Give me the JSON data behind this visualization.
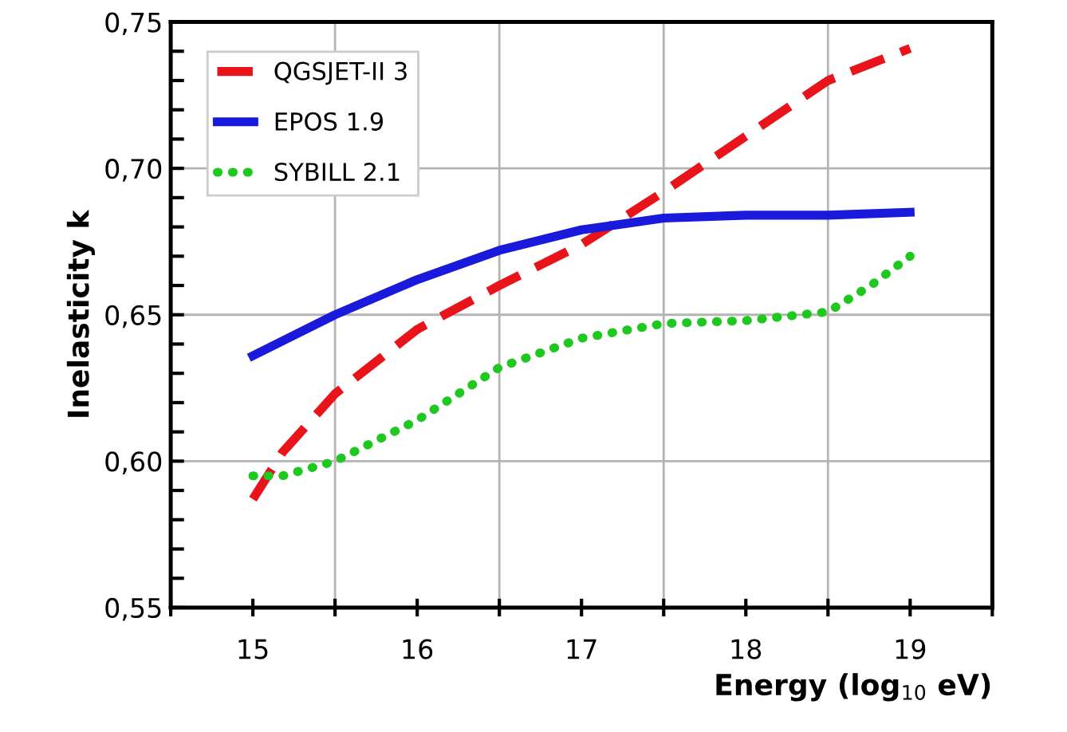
{
  "chart_data": {
    "type": "line",
    "xlabel": "Energy (log$_{10}$ eV)",
    "ylabel": "Inelasticity k",
    "xlim": [
      14.5,
      19.5
    ],
    "ylim": [
      0.55,
      0.75
    ],
    "xticks": [
      {
        "value": 14.5,
        "label": null
      },
      15,
      {
        "value": 15.5,
        "label": null
      },
      16,
      {
        "value": 16.5,
        "label": null
      },
      17,
      {
        "value": 17.5,
        "label": null
      },
      18,
      {
        "value": 18.5,
        "label": null
      },
      19,
      {
        "value": 19.5,
        "label": null
      }
    ],
    "yticks": [
      {
        "value": 0.55,
        "label": "0,55"
      },
      {
        "value": 0.56,
        "label": null
      },
      {
        "value": 0.57,
        "label": null
      },
      {
        "value": 0.58,
        "label": null
      },
      {
        "value": 0.59,
        "label": null
      },
      {
        "value": 0.6,
        "label": "0,60"
      },
      {
        "value": 0.61,
        "label": null
      },
      {
        "value": 0.62,
        "label": null
      },
      {
        "value": 0.63,
        "label": null
      },
      {
        "value": 0.64,
        "label": null
      },
      {
        "value": 0.65,
        "label": "0,65"
      },
      {
        "value": 0.66,
        "label": null
      },
      {
        "value": 0.67,
        "label": null
      },
      {
        "value": 0.68,
        "label": null
      },
      {
        "value": 0.69,
        "label": null
      },
      {
        "value": 0.7,
        "label": "0,70"
      },
      {
        "value": 0.71,
        "label": null
      },
      {
        "value": 0.72,
        "label": null
      },
      {
        "value": 0.73,
        "label": null
      },
      {
        "value": 0.74,
        "label": null
      },
      {
        "value": 0.75,
        "label": "0,75"
      }
    ],
    "grid": true,
    "legend": "top left",
    "marker": "none",
    "series": [
      {
        "name": "QGSJET-II 3",
        "color": "#e8141a",
        "line_style": "dashed",
        "x": [
          15,
          15.18,
          15.5,
          16,
          16.5,
          17,
          17.5,
          18,
          18.5,
          19
        ],
        "values": [
          0.587,
          0.603,
          0.623,
          0.645,
          0.66,
          0.674,
          0.692,
          0.711,
          0.73,
          0.741
        ]
      },
      {
        "name": "EPOS 1.9",
        "color": "#1a1adc",
        "line_style": "solid",
        "x": [
          15,
          15.5,
          16,
          16.5,
          17,
          17.5,
          18,
          18.5,
          19
        ],
        "values": [
          0.636,
          0.65,
          0.662,
          0.672,
          0.679,
          0.683,
          0.684,
          0.684,
          0.685
        ]
      },
      {
        "name": "SYBILL 2.1",
        "color": "#1ec81e",
        "line_style": "dotted",
        "x": [
          15,
          15.18,
          15.5,
          16,
          16.5,
          17,
          17.5,
          18,
          18.5,
          18.76,
          19
        ],
        "values": [
          0.595,
          0.595,
          0.6,
          0.614,
          0.632,
          0.642,
          0.647,
          0.648,
          0.651,
          0.66,
          0.67
        ]
      }
    ]
  }
}
